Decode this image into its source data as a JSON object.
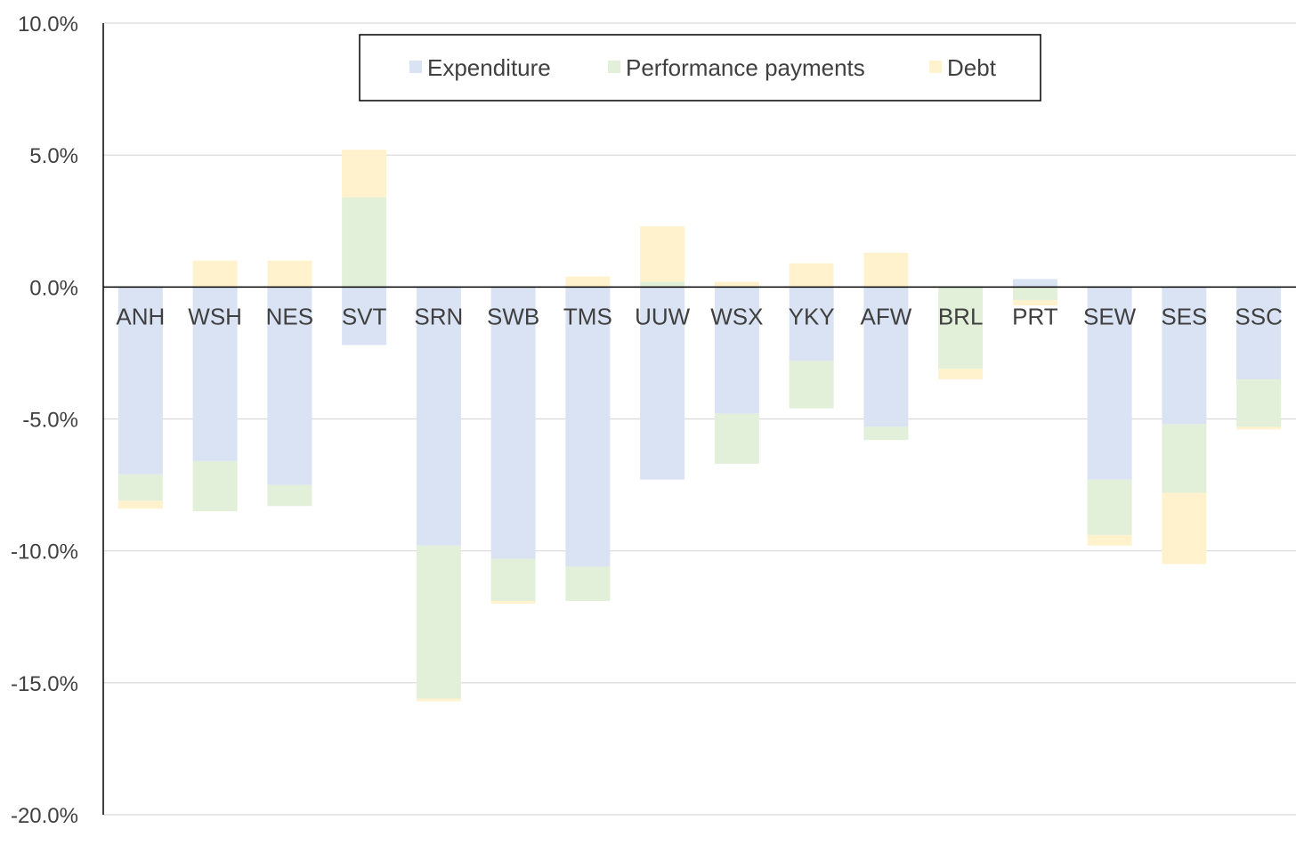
{
  "chart_data": {
    "type": "bar",
    "stacked": true,
    "categories": [
      "ANH",
      "WSH",
      "NES",
      "SVT",
      "SRN",
      "SWB",
      "TMS",
      "UUW",
      "WSX",
      "YKY",
      "AFW",
      "BRL",
      "PRT",
      "SEW",
      "SES",
      "SSC"
    ],
    "series": [
      {
        "name": "Expenditure",
        "color": "#dae3f3",
        "values": [
          -7.1,
          -6.6,
          -7.5,
          -2.2,
          -9.8,
          -10.3,
          -10.6,
          -7.3,
          -4.8,
          -2.8,
          -5.3,
          0.0,
          0.3,
          -7.3,
          -5.2,
          -3.5
        ]
      },
      {
        "name": "Performance payments",
        "color": "#e2f0d9",
        "values": [
          -1.0,
          -1.9,
          -0.8,
          3.4,
          -5.8,
          -1.6,
          -1.3,
          0.2,
          -1.9,
          -1.8,
          -0.5,
          -3.1,
          -0.5,
          -2.1,
          -2.6,
          -1.8
        ]
      },
      {
        "name": "Debt",
        "color": "#fff2cc",
        "values": [
          -0.3,
          1.0,
          1.0,
          1.8,
          -0.1,
          -0.1,
          0.4,
          2.1,
          0.2,
          0.9,
          1.3,
          -0.4,
          -0.2,
          -0.4,
          -2.7,
          -0.1
        ]
      }
    ],
    "ylim": [
      -20,
      10
    ],
    "yticks": [
      10,
      5,
      0,
      -5,
      -10,
      -15,
      -20
    ],
    "ytick_labels": [
      "10.0%",
      "5.0%",
      "0.0%",
      "-5.0%",
      "-10.0%",
      "-15.0%",
      "-20.0%"
    ],
    "title": "",
    "xlabel": "",
    "ylabel": "",
    "grid": true,
    "legend_position": "top-center"
  }
}
